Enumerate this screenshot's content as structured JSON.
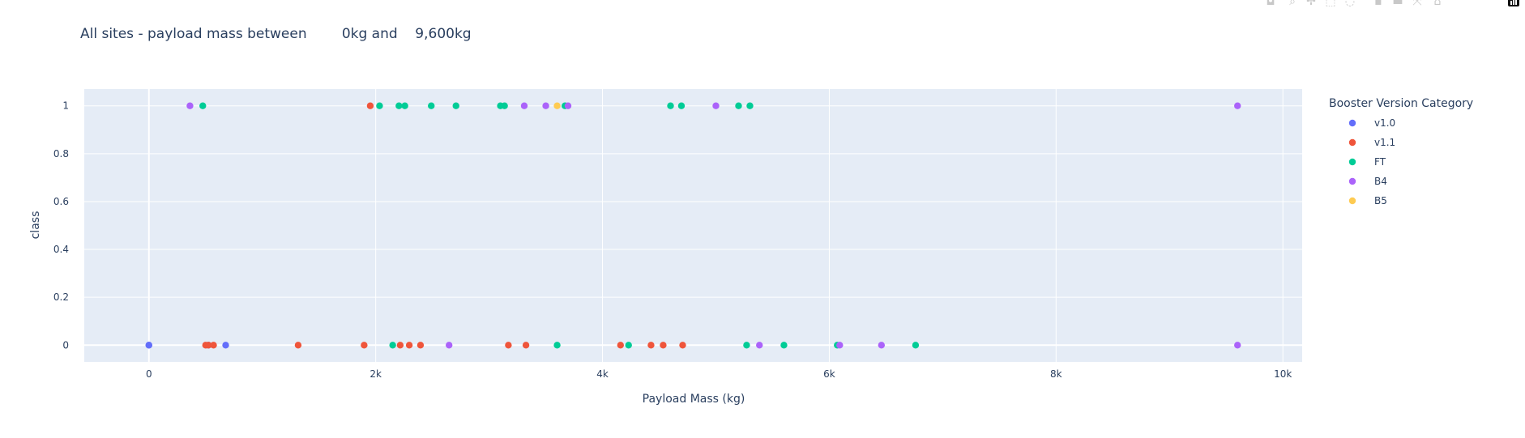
{
  "modebar": {
    "icons": [
      "camera-icon",
      "zoom-icon",
      "pan-icon",
      "box-select-icon",
      "lasso-icon",
      "zoom-in-icon",
      "zoom-out-icon",
      "autoscale-icon",
      "reset-axes-icon",
      "plotly-logo"
    ]
  },
  "chart_data": {
    "type": "scatter",
    "title": "All sites - payload mass between        0kg and    9,600kg",
    "xlabel": "Payload Mass (kg)",
    "ylabel": "class",
    "xlim": [
      -570,
      10170
    ],
    "ylim": [
      -0.07,
      1.07
    ],
    "x_ticks": [
      0,
      2000,
      4000,
      6000,
      8000,
      10000
    ],
    "x_tick_labels": [
      "0",
      "2k",
      "4k",
      "6k",
      "8k",
      "10k"
    ],
    "y_ticks": [
      0,
      0.2,
      0.4,
      0.6,
      0.8,
      1
    ],
    "y_tick_labels": [
      "0",
      "0.2",
      "0.4",
      "0.6",
      "0.8",
      "1"
    ],
    "grid": true,
    "plot_background": "#e5ecf6",
    "legend": {
      "title": "Booster Version Category",
      "placement": "right"
    },
    "series": [
      {
        "name": "v1.0",
        "color": "#636efa",
        "points": [
          [
            0,
            0
          ],
          [
            0,
            0
          ],
          [
            677,
            0
          ],
          [
            525,
            0
          ]
        ]
      },
      {
        "name": "v1.1",
        "color": "#ef553b",
        "points": [
          [
            500,
            0
          ],
          [
            525,
            0
          ],
          [
            570,
            0
          ],
          [
            1316,
            0
          ],
          [
            1898,
            0
          ],
          [
            1952,
            1
          ],
          [
            2216,
            0
          ],
          [
            2296,
            0
          ],
          [
            2395,
            0
          ],
          [
            3170,
            0
          ],
          [
            3325,
            0
          ],
          [
            4159,
            0
          ],
          [
            4428,
            0
          ],
          [
            4535,
            0
          ],
          [
            4707,
            0
          ]
        ]
      },
      {
        "name": "FT",
        "color": "#00cc96",
        "points": [
          [
            475,
            1
          ],
          [
            2034,
            1
          ],
          [
            2205,
            1
          ],
          [
            2257,
            1
          ],
          [
            2490,
            1
          ],
          [
            2708,
            1
          ],
          [
            3100,
            1
          ],
          [
            3136,
            1
          ],
          [
            3669,
            1
          ],
          [
            4600,
            1
          ],
          [
            4696,
            1
          ],
          [
            5200,
            1
          ],
          [
            5300,
            1
          ],
          [
            2150,
            0
          ],
          [
            3600,
            0
          ],
          [
            4230,
            0
          ],
          [
            5271,
            0
          ],
          [
            5600,
            0
          ],
          [
            6070,
            0
          ],
          [
            6761,
            0
          ]
        ]
      },
      {
        "name": "B4",
        "color": "#ab63fa",
        "points": [
          [
            362,
            1
          ],
          [
            3310,
            1
          ],
          [
            3500,
            1
          ],
          [
            3696,
            1
          ],
          [
            5000,
            1
          ],
          [
            9600,
            1
          ],
          [
            2647,
            0
          ],
          [
            5384,
            0
          ],
          [
            6092,
            0
          ],
          [
            6460,
            0
          ],
          [
            9600,
            0
          ]
        ]
      },
      {
        "name": "B5",
        "color": "#fecb52",
        "points": [
          [
            3600,
            1
          ]
        ]
      }
    ]
  }
}
